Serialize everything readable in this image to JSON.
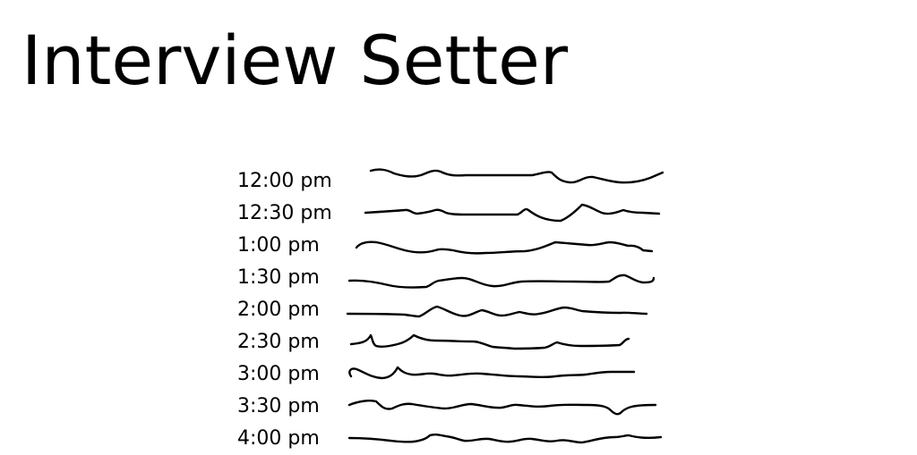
{
  "app": {
    "title": "Interview Setter"
  },
  "slots": [
    {
      "time": "12:00 pm"
    },
    {
      "time": "12:30 pm"
    },
    {
      "time": "1:00 pm"
    },
    {
      "time": "1:30 pm"
    },
    {
      "time": "2:00 pm"
    },
    {
      "time": "2:30 pm"
    },
    {
      "time": "3:00 pm"
    },
    {
      "time": "3:30 pm"
    },
    {
      "time": "4:00 pm"
    }
  ]
}
